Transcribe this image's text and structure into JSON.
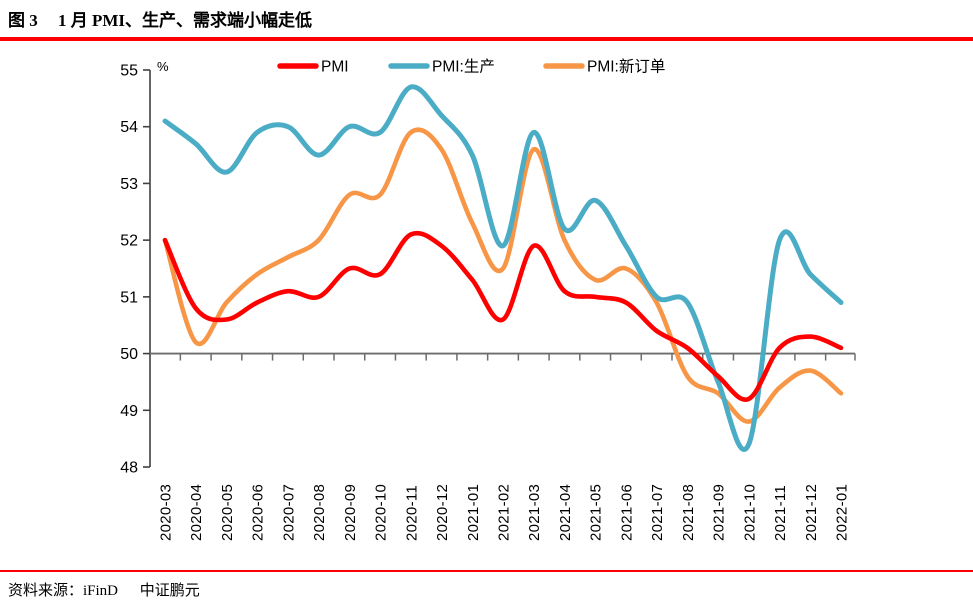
{
  "page": {
    "figure_label": "图 3",
    "title": "1 月 PMI、生产、需求端小幅走低",
    "source_label": "资料来源：iFinD",
    "source_org": "中证鹏元",
    "accent_red": "#ff0000"
  },
  "chart_data": {
    "type": "line",
    "unit_label": "%",
    "legend_position": "top",
    "grid": false,
    "smoothed": true,
    "baseline": 50,
    "ylim": [
      48,
      55
    ],
    "yticks": [
      48,
      49,
      50,
      51,
      52,
      53,
      54,
      55
    ],
    "axis_color": "#404040",
    "baseline_color": "#6d6d6d",
    "categories": [
      "2020-03",
      "2020-04",
      "2020-05",
      "2020-06",
      "2020-07",
      "2020-08",
      "2020-09",
      "2020-10",
      "2020-11",
      "2020-12",
      "2021-01",
      "2021-02",
      "2021-03",
      "2021-04",
      "2021-05",
      "2021-06",
      "2021-07",
      "2021-08",
      "2021-09",
      "2021-10",
      "2021-11",
      "2021-12",
      "2022-01"
    ],
    "series": [
      {
        "key": "pmi",
        "name": "PMI",
        "color": "#ff0000",
        "values": [
          52.0,
          50.8,
          50.6,
          50.9,
          51.1,
          51.0,
          51.5,
          51.4,
          52.1,
          51.9,
          51.3,
          50.6,
          51.9,
          51.1,
          51.0,
          50.9,
          50.4,
          50.1,
          49.6,
          49.2,
          50.1,
          50.3,
          50.1
        ]
      },
      {
        "key": "pmi-production",
        "name": "PMI:生产",
        "color": "#4bacc6",
        "values": [
          54.1,
          53.7,
          53.2,
          53.9,
          54.0,
          53.5,
          54.0,
          53.9,
          54.7,
          54.2,
          53.5,
          51.9,
          53.9,
          52.2,
          52.7,
          51.9,
          51.0,
          50.9,
          49.5,
          48.4,
          52.0,
          51.4,
          50.9
        ]
      },
      {
        "key": "pmi-new-orders",
        "name": "PMI:新订单",
        "color": "#f79646",
        "values": [
          52.0,
          50.2,
          50.9,
          51.4,
          51.7,
          52.0,
          52.8,
          52.8,
          53.9,
          53.6,
          52.3,
          51.5,
          53.6,
          52.0,
          51.3,
          51.5,
          50.9,
          49.6,
          49.3,
          48.8,
          49.4,
          49.7,
          49.3
        ]
      }
    ]
  }
}
